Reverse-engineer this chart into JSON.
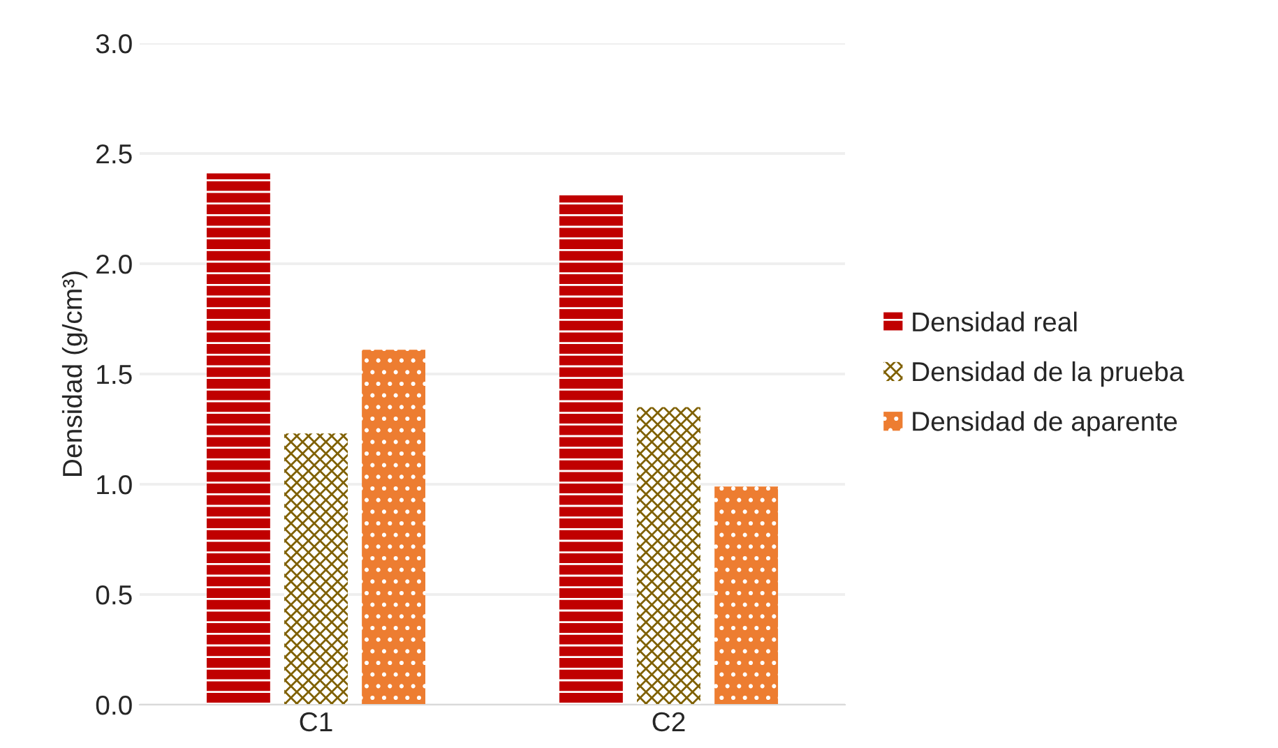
{
  "chart_data": {
    "type": "bar",
    "ylabel": "Densidad (g/cm³)",
    "categories": [
      "C1",
      "C2"
    ],
    "series": [
      {
        "name": "Densidad real",
        "color": "#c00000",
        "values": [
          2.41,
          2.31
        ]
      },
      {
        "name": "Densidad de la prueba",
        "color": "#7f6000",
        "values": [
          1.23,
          1.35
        ]
      },
      {
        "name": "Densidad de aparente",
        "color": "#ed7d31",
        "values": [
          1.61,
          0.99
        ]
      }
    ],
    "ylim": [
      0,
      3.0
    ],
    "yticks": [
      {
        "value": 0,
        "label": "0.0"
      },
      {
        "value": 0.5,
        "label": "0.5"
      },
      {
        "value": 1.0,
        "label": "1.0"
      },
      {
        "value": 1.5,
        "label": "1.5"
      },
      {
        "value": 2.0,
        "label": "2.0"
      },
      {
        "value": 2.5,
        "label": "2.5"
      },
      {
        "value": 3.0,
        "label": "3.0"
      }
    ],
    "grid": "y",
    "legend": "right"
  }
}
